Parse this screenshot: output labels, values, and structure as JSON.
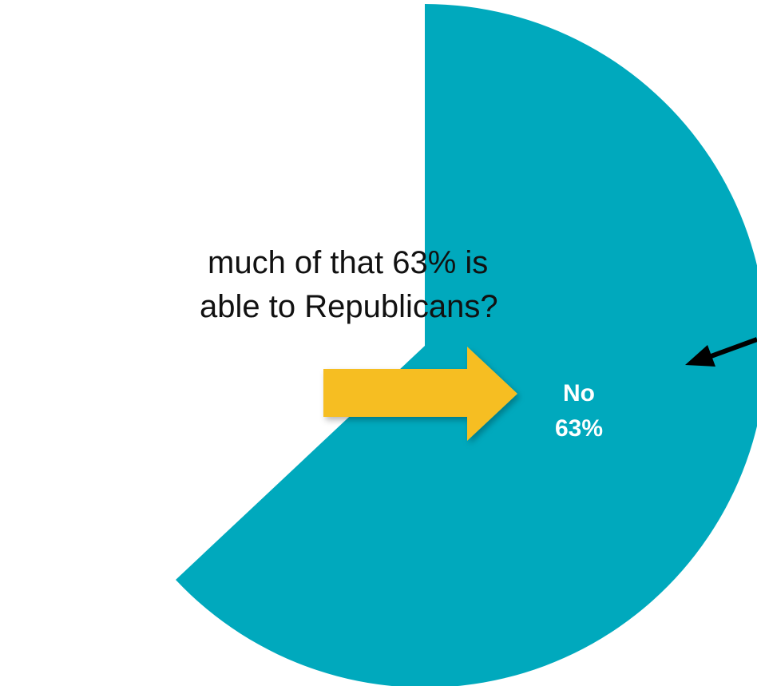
{
  "callout": {
    "line1": "much of that 63% is",
    "line2": "able to Republicans?"
  },
  "chart_data": {
    "type": "pie",
    "title": "",
    "slices": [
      {
        "label": "No",
        "value": 63,
        "value_label": "63%",
        "color": "#00A9BD"
      }
    ]
  },
  "colors": {
    "pie": "#00A9BD",
    "arrow": "#F6BE22",
    "text": "#111111",
    "pointer": "#000000"
  }
}
